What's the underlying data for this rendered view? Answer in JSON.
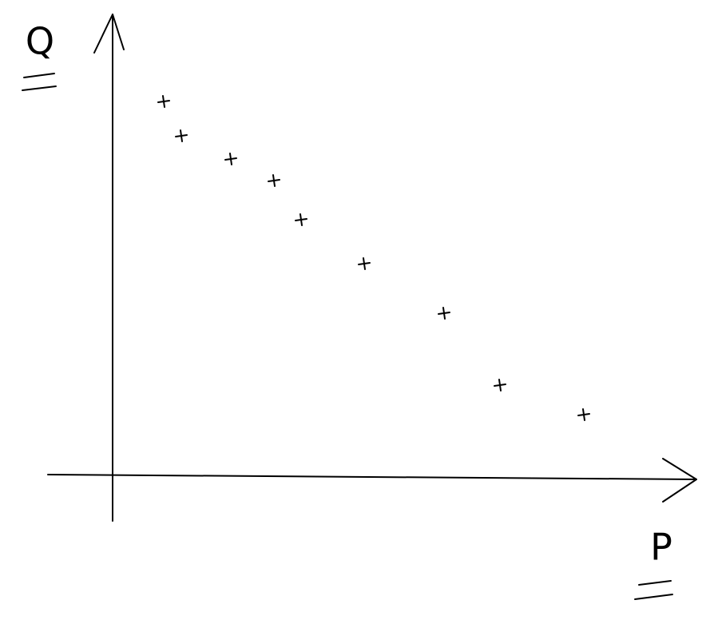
{
  "chart_data": {
    "type": "scatter",
    "x_label": "P",
    "y_label": "Q",
    "x": [
      64,
      86,
      148,
      202,
      236,
      315,
      415,
      485,
      590
    ],
    "values": [
      467,
      424,
      395,
      368,
      319,
      264,
      202,
      112,
      75
    ],
    "xlim": [
      0,
      730
    ],
    "ylim": [
      0,
      574
    ],
    "color": "#000000"
  }
}
